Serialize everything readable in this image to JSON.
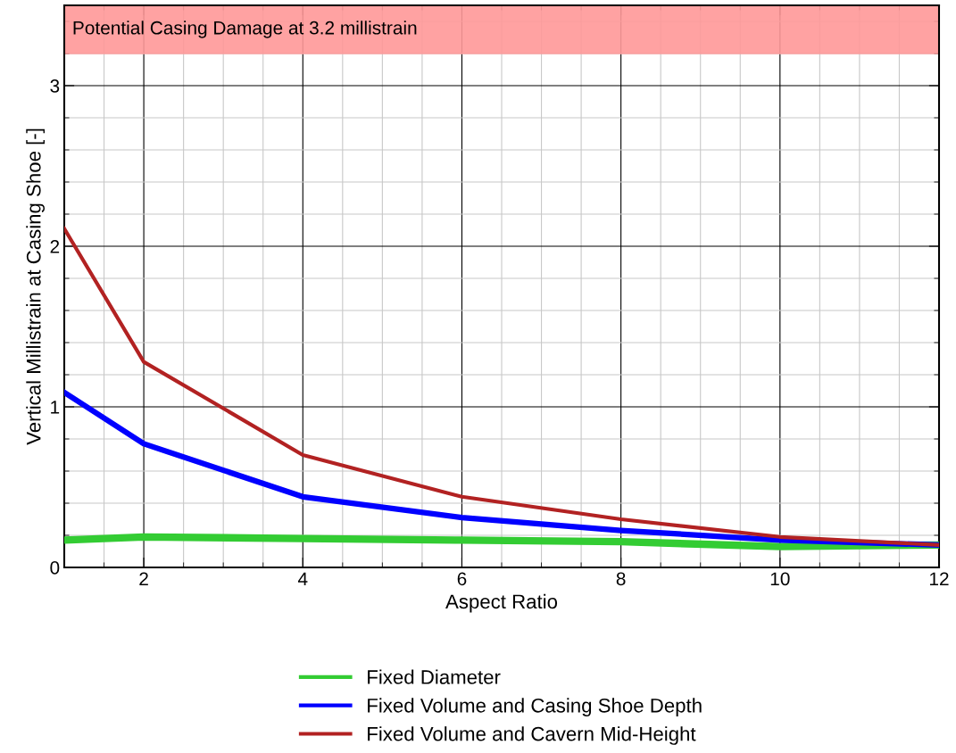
{
  "chart_data": {
    "type": "line",
    "xlabel": "Aspect Ratio",
    "ylabel": "Vertical Millistrain at Casing Shoe [-]",
    "x": [
      1,
      2,
      4,
      6,
      8,
      10,
      12
    ],
    "series": [
      {
        "name": "Fixed Diameter",
        "color": "#33cc33",
        "values": [
          0.17,
          0.19,
          0.18,
          0.17,
          0.16,
          0.13,
          0.14
        ]
      },
      {
        "name": "Fixed Volume and Casing Shoe Depth",
        "color": "#0000ff",
        "values": [
          1.09,
          0.77,
          0.44,
          0.31,
          0.23,
          0.17,
          0.14
        ]
      },
      {
        "name": "Fixed Volume and Cavern Mid-Height",
        "color": "#b22222",
        "values": [
          2.11,
          1.28,
          0.7,
          0.44,
          0.3,
          0.19,
          0.14
        ]
      }
    ],
    "bands": [
      {
        "axis": "y",
        "from": 3.2,
        "to": 3.5,
        "label": "Potential Casing Damage at 3.2 millistrain",
        "color": "#ff9999"
      }
    ],
    "xlim": [
      1,
      12
    ],
    "xticks": [
      2,
      4,
      6,
      8,
      10,
      12
    ],
    "ylim": [
      0,
      3.5
    ],
    "yticks": [
      0,
      1,
      2,
      3
    ],
    "grid": true,
    "legend": "bottom",
    "marker": "none",
    "line_style": "solid"
  }
}
